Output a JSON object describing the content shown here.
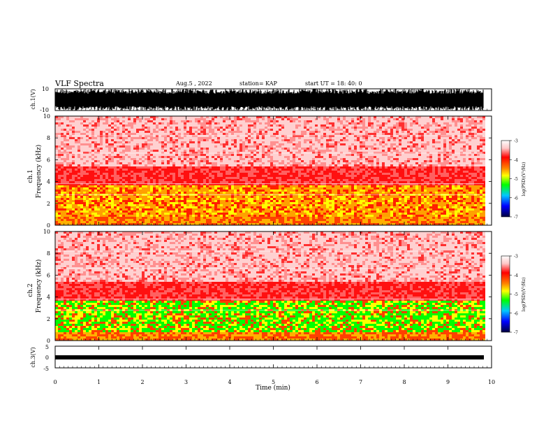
{
  "header": {
    "title": "VLF Spectra",
    "date": "Aug.5 , 2022",
    "station": "station= KAP",
    "start": "start UT = 18: 40: 0"
  },
  "chart_data": [
    {
      "type": "line",
      "panel": "waveform-ch1",
      "ylabel": "ch.1(V)",
      "ylim": [
        -10,
        10
      ],
      "y_ticks": [
        "10",
        "-10"
      ],
      "xlim": [
        0,
        10
      ],
      "description_values": "dense saturated waveform spanning approximately -10 to 10 V"
    },
    {
      "type": "heatmap",
      "panel": "spectrogram-ch1",
      "ylabel_line1": "ch.1",
      "ylabel_line2": "Frequency (kHz)",
      "ylim": [
        0,
        10
      ],
      "y_ticks": [
        "0",
        "2",
        "4",
        "6",
        "8",
        "10"
      ],
      "xlim": [
        0,
        10
      ],
      "colorbar": {
        "label": "log(PSD)(V²/Hz)",
        "range": [
          -7,
          -3
        ],
        "ticks": [
          "-3",
          "-4",
          "-5",
          "-6",
          "-7"
        ]
      }
    },
    {
      "type": "heatmap",
      "panel": "spectrogram-ch2",
      "ylabel_line1": "ch.2",
      "ylabel_line2": "Frequency (kHz)",
      "ylim": [
        0,
        10
      ],
      "y_ticks": [
        "0",
        "2",
        "4",
        "6",
        "8",
        "10"
      ],
      "xlim": [
        0,
        10
      ],
      "colorbar": {
        "label": "log(PSD)(V²/Hz)",
        "range": [
          -7,
          -3
        ],
        "ticks": [
          "-3",
          "-4",
          "-5",
          "-6",
          "-7"
        ]
      }
    },
    {
      "type": "line",
      "panel": "waveform-ch3",
      "ylabel": "ch.3(V)",
      "ylim": [
        -5,
        5
      ],
      "y_ticks": [
        "5",
        "0",
        "-5"
      ],
      "xlim": [
        0,
        10
      ]
    }
  ],
  "xaxis": {
    "label": "Time (min)",
    "ticks": [
      "0",
      "1",
      "2",
      "3",
      "4",
      "5",
      "6",
      "7",
      "8",
      "9",
      "10"
    ]
  },
  "colors": {
    "background": "#ffffff",
    "waveform": "#000000",
    "psd_high": "#ff0000",
    "psd_mid": "#ffff00",
    "psd_low": "#00ff00"
  }
}
